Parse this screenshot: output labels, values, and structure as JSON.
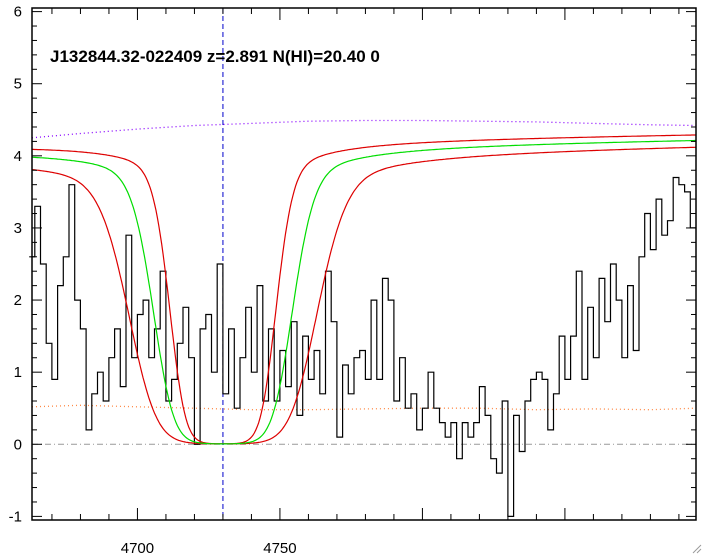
{
  "chart_data": {
    "type": "line",
    "title": "J132844.32-022409 z=2.891 N(HI)=20.40 0",
    "xlabel": "",
    "ylabel": "",
    "xlim": [
      4663,
      4896
    ],
    "ylim": [
      -1.05,
      6.05
    ],
    "x_ticks": [
      4700,
      4750
    ],
    "x_minor_step": 10,
    "y_ticks": [
      -1,
      0,
      1,
      2,
      3,
      4,
      5,
      6
    ],
    "y_minor_step": 0.2,
    "grid": false,
    "legend": "none",
    "marker_line_x": 4730,
    "reference_zero_y": 0,
    "colors": {
      "flux": "#000000",
      "model": "#00dd00",
      "model_bounds": "#dd0000",
      "continuum": "#8800ff",
      "error": "#ff8844",
      "zero_line": "#999999",
      "marker": "#0000cc"
    },
    "series": [
      {
        "id": "flux",
        "style": "steps",
        "x": [
          4663,
          4665,
          4667,
          4669,
          4671,
          4673,
          4675,
          4677,
          4679,
          4681,
          4683,
          4685,
          4687,
          4689,
          4691,
          4693,
          4695,
          4697,
          4699,
          4701,
          4703,
          4705,
          4707,
          4709,
          4711,
          4713,
          4715,
          4717,
          4719,
          4721,
          4723,
          4725,
          4727,
          4729,
          4731,
          4733,
          4735,
          4737,
          4739,
          4741,
          4743,
          4745,
          4747,
          4749,
          4751,
          4753,
          4755,
          4757,
          4759,
          4761,
          4763,
          4765,
          4767,
          4769,
          4771,
          4773,
          4775,
          4777,
          4779,
          4781,
          4783,
          4785,
          4787,
          4789,
          4791,
          4793,
          4795,
          4797,
          4799,
          4801,
          4803,
          4805,
          4807,
          4809,
          4811,
          4813,
          4815,
          4817,
          4819,
          4821,
          4823,
          4825,
          4827,
          4829,
          4831,
          4833,
          4835,
          4837,
          4839,
          4841,
          4843,
          4845,
          4847,
          4849,
          4851,
          4853,
          4855,
          4857,
          4859,
          4861,
          4863,
          4865,
          4867,
          4869,
          4871,
          4873,
          4875,
          4877,
          4879,
          4881,
          4883,
          4885,
          4887,
          4889,
          4891,
          4893,
          4895
        ],
        "y": [
          2.6,
          3.3,
          2.5,
          1.4,
          0.9,
          2.2,
          2.6,
          3.6,
          2.0,
          1.6,
          0.2,
          0.7,
          1.0,
          0.6,
          1.2,
          1.6,
          0.8,
          2.9,
          1.2,
          1.8,
          2.0,
          1.2,
          1.6,
          2.4,
          0.6,
          0.9,
          1.4,
          1.9,
          1.2,
          0.0,
          1.6,
          1.8,
          1.0,
          2.5,
          0.7,
          1.6,
          0.5,
          1.2,
          1.9,
          1.0,
          2.2,
          0.6,
          1.6,
          0.6,
          1.3,
          0.8,
          1.7,
          0.4,
          1.5,
          0.9,
          1.3,
          0.7,
          2.4,
          1.7,
          0.1,
          1.1,
          0.7,
          1.2,
          1.3,
          0.9,
          2.0,
          0.9,
          2.3,
          2.0,
          0.6,
          1.2,
          0.5,
          0.7,
          0.2,
          0.5,
          1.0,
          0.5,
          0.3,
          0.1,
          0.3,
          -0.2,
          0.3,
          0.1,
          0.3,
          0.8,
          0.4,
          -0.2,
          -0.4,
          0.6,
          -1.0,
          0.4,
          -0.1,
          0.6,
          0.9,
          1.0,
          0.9,
          0.2,
          0.7,
          1.5,
          0.9,
          1.5,
          2.4,
          0.9,
          1.9,
          1.2,
          2.3,
          1.7,
          2.5,
          2.0,
          1.2,
          2.2,
          1.3,
          2.6,
          3.2,
          2.7,
          3.4,
          2.9,
          3.1,
          3.7,
          3.6,
          3.5,
          3.0
        ]
      },
      {
        "id": "model",
        "style": "voigt_profile",
        "center": 4730,
        "continuum_start": 4.08,
        "continuum_end": 4.23,
        "half_width": 17
      },
      {
        "id": "model_upper",
        "style": "voigt_profile",
        "center": 4730,
        "continuum_start": 4.15,
        "continuum_end": 4.3,
        "half_width": 13
      },
      {
        "id": "model_lower",
        "style": "voigt_profile",
        "center": 4730,
        "continuum_start": 3.98,
        "continuum_end": 4.15,
        "half_width": 23
      },
      {
        "id": "continuum",
        "style": "dotted",
        "x": [
          4663,
          4680,
          4700,
          4720,
          4740,
          4760,
          4780,
          4800,
          4820,
          4840,
          4860,
          4880,
          4896
        ],
        "y": [
          4.25,
          4.31,
          4.37,
          4.42,
          4.45,
          4.48,
          4.49,
          4.49,
          4.48,
          4.47,
          4.45,
          4.43,
          4.42
        ]
      },
      {
        "id": "error",
        "style": "dotted",
        "x": [
          4663,
          4680,
          4700,
          4720,
          4740,
          4760,
          4780,
          4800,
          4820,
          4840,
          4860,
          4880,
          4896
        ],
        "y": [
          0.52,
          0.54,
          0.52,
          0.5,
          0.48,
          0.48,
          0.49,
          0.5,
          0.5,
          0.48,
          0.49,
          0.48,
          0.5
        ]
      }
    ]
  }
}
